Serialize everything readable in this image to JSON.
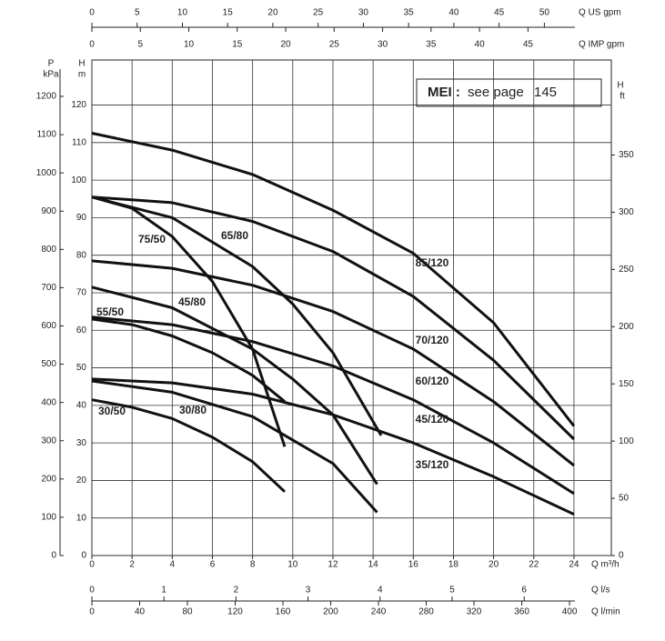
{
  "chart_data": {
    "type": "line",
    "annotation": {
      "bold": "MEI :",
      "text": "see page",
      "page": "145"
    },
    "color": "#111111",
    "grid": true,
    "x_label": "Q m³/h",
    "xlim": [
      0,
      25.86
    ],
    "xticks": [
      0,
      2,
      4,
      6,
      8,
      10,
      12,
      14,
      16,
      18,
      20,
      22,
      24
    ],
    "y_label": "H",
    "y_unit": "m",
    "ylim": [
      0,
      132
    ],
    "yticks": [
      0,
      10,
      20,
      30,
      40,
      50,
      60,
      70,
      80,
      90,
      100,
      110,
      120
    ],
    "p_axis": {
      "label": "P",
      "unit": "kPa",
      "lim": [
        0,
        1295
      ],
      "ticks": [
        0,
        100,
        200,
        300,
        400,
        500,
        600,
        700,
        800,
        900,
        1000,
        1100,
        1200
      ]
    },
    "y2_label": "H",
    "y2_unit": "ft",
    "y2lim": [
      0,
      433
    ],
    "y2ticks": [
      0,
      50,
      100,
      150,
      200,
      250,
      300,
      350
    ],
    "top_axes": [
      {
        "label": "Q US gpm",
        "lim": [
          0,
          57.4
        ],
        "ticks": [
          0,
          5,
          10,
          15,
          20,
          25,
          30,
          35,
          40,
          45,
          50
        ]
      },
      {
        "label": "Q IMP gpm",
        "lim": [
          0,
          53.6
        ],
        "ticks": [
          0,
          5,
          10,
          15,
          20,
          25,
          30,
          35,
          40,
          45
        ]
      }
    ],
    "bottom_axes": [
      {
        "label": "Q l/s",
        "lim": [
          0,
          7.21
        ],
        "ticks": [
          0,
          1,
          2,
          3,
          4,
          5,
          6
        ]
      },
      {
        "label": "Q l/min",
        "lim": [
          0,
          435
        ],
        "ticks": [
          0,
          40,
          80,
          120,
          160,
          200,
          240,
          280,
          320,
          360,
          400
        ]
      }
    ],
    "series": [
      {
        "name": "85/120",
        "x": [
          0,
          4,
          8,
          12,
          16,
          20,
          24
        ],
        "values": [
          112.5,
          108,
          101.5,
          92,
          80.5,
          62,
          34.5
        ]
      },
      {
        "name": "70/120",
        "x": [
          0,
          4,
          8,
          12,
          16,
          20,
          24
        ],
        "values": [
          95.5,
          94,
          89,
          81,
          69,
          52,
          31
        ]
      },
      {
        "name": "60/120",
        "x": [
          0,
          4,
          8,
          12,
          16,
          20,
          24
        ],
        "values": [
          78.5,
          76.5,
          72,
          65,
          55,
          41,
          24
        ]
      },
      {
        "name": "45/120",
        "x": [
          0,
          4,
          8,
          12,
          16,
          20,
          24
        ],
        "values": [
          63.5,
          61.5,
          57,
          50.5,
          41.5,
          30,
          16.5
        ]
      },
      {
        "name": "35/120",
        "x": [
          0,
          4,
          8,
          12,
          16,
          20,
          24
        ],
        "values": [
          47,
          46,
          43,
          37.5,
          30,
          21,
          11
        ]
      },
      {
        "name": "75/50",
        "x": [
          0,
          2,
          4,
          6,
          8,
          9.6
        ],
        "values": [
          95.5,
          92.5,
          85,
          73,
          55,
          29
        ]
      },
      {
        "name": "65/80",
        "x": [
          0,
          4,
          8,
          10,
          12,
          14.4
        ],
        "values": [
          95.5,
          90,
          77,
          67,
          54,
          32
        ]
      },
      {
        "name": "45/80",
        "x": [
          0,
          4,
          8,
          10,
          12,
          14.2
        ],
        "values": [
          71.5,
          66,
          55,
          47,
          37.5,
          19
        ]
      },
      {
        "name": "55/50",
        "x": [
          0,
          2,
          4,
          6,
          8,
          9.6
        ],
        "values": [
          63,
          61.5,
          58.5,
          54,
          48,
          41
        ]
      },
      {
        "name": "30/80",
        "x": [
          0,
          4,
          8,
          12,
          14.2
        ],
        "values": [
          46.5,
          43.5,
          37,
          24.5,
          11.5
        ]
      },
      {
        "name": "30/50",
        "x": [
          0,
          2,
          4,
          6,
          8,
          9.6
        ],
        "values": [
          41.5,
          39.5,
          36.5,
          31.5,
          25,
          17
        ]
      }
    ]
  }
}
